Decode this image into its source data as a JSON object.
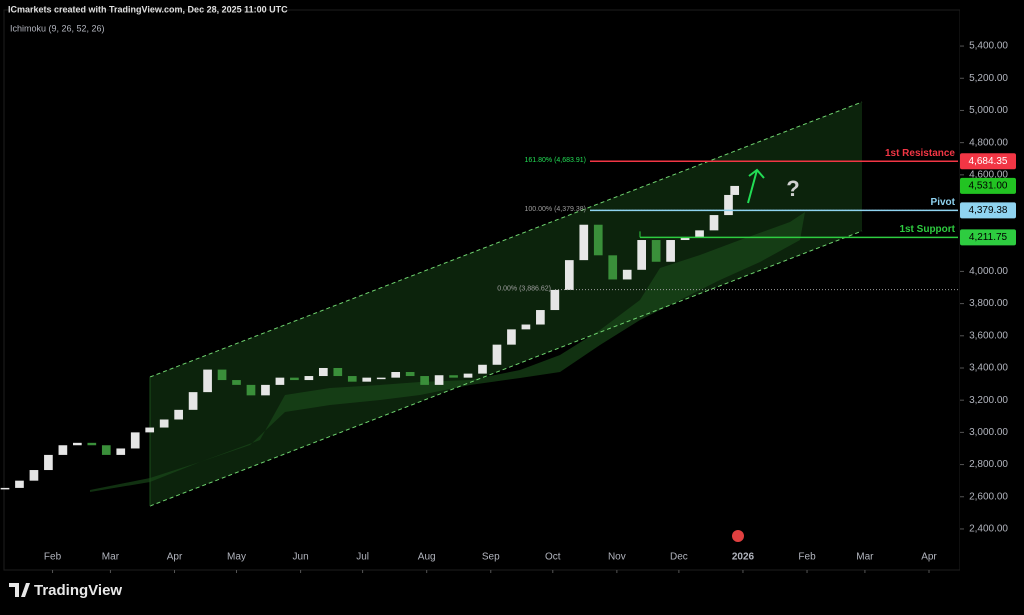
{
  "chart_data": {
    "type": "candlestick",
    "header": "ICmarkets created with TradingView.com, Dec 28, 2025 11:00 UTC",
    "indicator": "Ichimoku (9, 26, 52, 26)",
    "brand": "TradingView",
    "annotation": "?",
    "x": [
      8,
      15,
      22,
      29,
      36,
      43,
      50,
      57,
      64,
      71,
      78,
      85,
      92,
      99,
      106,
      113,
      120,
      127,
      134,
      141,
      148,
      155,
      162,
      169,
      176,
      183,
      190,
      197,
      204,
      211,
      218,
      225,
      232,
      239,
      246,
      253,
      260,
      267,
      274,
      281,
      288,
      295,
      302,
      309,
      316,
      323,
      330,
      337,
      344,
      351,
      358,
      361
    ],
    "values": [
      2655,
      2700,
      2766,
      2860,
      2920,
      2935,
      2920,
      2860,
      2900,
      3000,
      3030,
      3080,
      3140,
      3250,
      3390,
      3325,
      3295,
      3230,
      3295,
      3340,
      3325,
      3350,
      3400,
      3350,
      3315,
      3340,
      3340,
      3375,
      3350,
      3295,
      3355,
      3340,
      3365,
      3420,
      3545,
      3640,
      3670,
      3760,
      3885,
      4070,
      4290,
      4100,
      3950,
      4010,
      4195,
      4060,
      4195,
      4210,
      4255,
      4350,
      4475,
      4531
    ],
    "up_color": "#e6e6e6",
    "down_color": "#3a8f3a",
    "xlim": [
      8,
      470
    ],
    "xticks": [
      {
        "value": 31,
        "label": "Feb"
      },
      {
        "value": 59,
        "label": "Mar"
      },
      {
        "value": 90,
        "label": "Apr"
      },
      {
        "value": 120,
        "label": "May"
      },
      {
        "value": 151,
        "label": "Jun"
      },
      {
        "value": 181,
        "label": "Jul"
      },
      {
        "value": 212,
        "label": "Aug"
      },
      {
        "value": 243,
        "label": "Sep"
      },
      {
        "value": 273,
        "label": "Oct"
      },
      {
        "value": 304,
        "label": "Nov"
      },
      {
        "value": 334,
        "label": "Dec"
      },
      {
        "value": 365,
        "label": "2026"
      },
      {
        "value": 396,
        "label": "Feb"
      },
      {
        "value": 424,
        "label": "Mar"
      },
      {
        "value": 455,
        "label": "Apr"
      }
    ],
    "ylim": [
      2145,
      5624
    ],
    "yticks": [
      {
        "value": 2400,
        "label": "2,400.00"
      },
      {
        "value": 2600,
        "label": "2,600.00"
      },
      {
        "value": 2800,
        "label": "2,800.00"
      },
      {
        "value": 3000,
        "label": "3,000.00"
      },
      {
        "value": 3200,
        "label": "3,200.00"
      },
      {
        "value": 3400,
        "label": "3,400.00"
      },
      {
        "value": 3600,
        "label": "3,600.00"
      },
      {
        "value": 3800,
        "label": "3,800.00"
      },
      {
        "value": 4000,
        "label": "4,000.00"
      },
      {
        "value": 4200,
        "label": "4,200.00"
      },
      {
        "value": 4400,
        "label": "4,400.00"
      },
      {
        "value": 4600,
        "label": "4,600.00"
      },
      {
        "value": 4800,
        "label": "4,800.00"
      },
      {
        "value": 5000,
        "label": "5,000.00"
      },
      {
        "value": 5200,
        "label": "5,200.00"
      },
      {
        "value": 5400,
        "label": "5,400.00"
      }
    ],
    "last_price": {
      "value": 4531,
      "label": "4,531.00",
      "color": "#22c322"
    },
    "levels": [
      {
        "name": "1st Resistance",
        "value": 4684.35,
        "label": "4,684.35",
        "color": "#f23645"
      },
      {
        "name": "Pivot",
        "value": 4379.38,
        "label": "4,379.38",
        "color": "#8fd3f0"
      },
      {
        "name": "1st Support",
        "value": 4211.75,
        "label": "4,211.75",
        "color": "#2ecc40"
      }
    ],
    "fib_levels": [
      {
        "label": "161.80% (4,683.91)",
        "value": 4683.91,
        "color": "#f23645"
      },
      {
        "label": "100.00% (4,379.38)",
        "value": 4379.38,
        "color": "#9e9e9e"
      },
      {
        "label": "0.00% (3,886.62)",
        "value": 3886.62,
        "color": "#9e9e9e"
      }
    ]
  }
}
